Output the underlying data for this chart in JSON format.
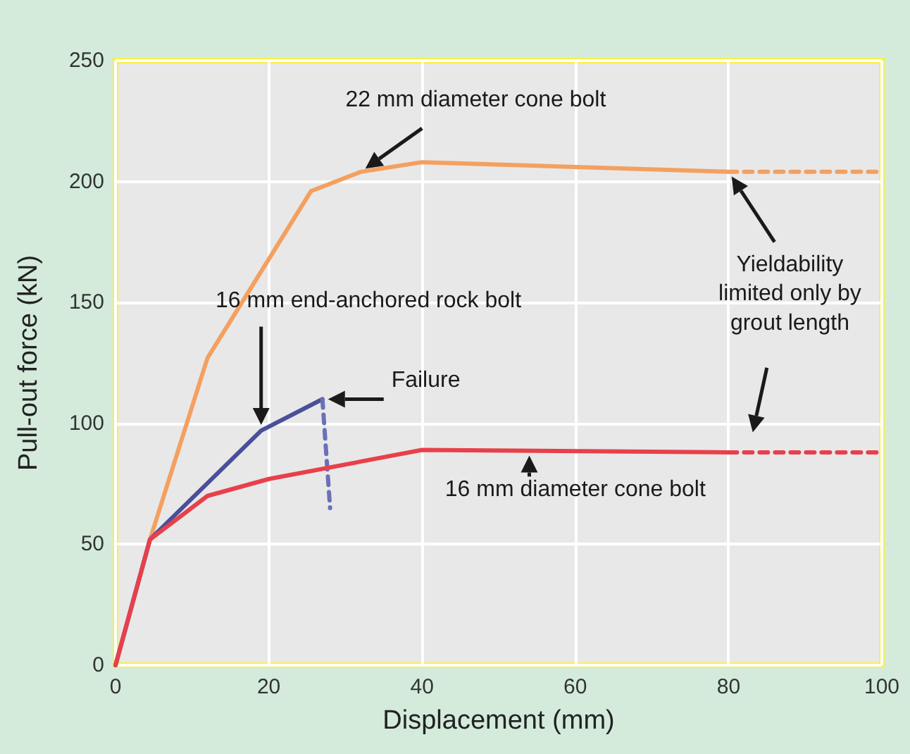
{
  "chart_data": {
    "type": "line",
    "xlabel": "Displacement (mm)",
    "ylabel": "Pull-out force (kN)",
    "xlim": [
      0,
      100
    ],
    "xticks": [
      0,
      20,
      40,
      60,
      80,
      100
    ],
    "ylim": [
      0,
      250
    ],
    "yticks": [
      0,
      50,
      100,
      150,
      200,
      250
    ],
    "grid": true,
    "marker": "none",
    "series": [
      {
        "color": "#f4a060",
        "x": [
          0,
          4.5,
          12,
          25.5,
          32,
          40,
          80
        ],
        "values": [
          0,
          52,
          127,
          196,
          204,
          208,
          204
        ],
        "line_style": "solid"
      },
      {
        "color": "#f4a060",
        "x": [
          80,
          100
        ],
        "values": [
          204,
          204
        ],
        "line_style": "dashed"
      },
      {
        "color": "#4a4f9a",
        "x": [
          0,
          4.5,
          19,
          27
        ],
        "values": [
          0,
          52,
          97,
          110
        ],
        "line_style": "solid"
      },
      {
        "color": "#6a70b8",
        "x": [
          27,
          28
        ],
        "values": [
          110,
          65
        ],
        "line_style": "dashed"
      },
      {
        "color": "#e8404a",
        "x": [
          0,
          4.5,
          12,
          20,
          40,
          80
        ],
        "values": [
          0,
          52,
          70,
          77,
          89,
          88
        ],
        "line_style": "solid"
      },
      {
        "color": "#e8404a",
        "x": [
          80,
          100
        ],
        "values": [
          88,
          88
        ],
        "line_style": "dashed"
      }
    ],
    "annotations": [
      "22 mm diameter cone bolt",
      "Yieldability\nlimited only by\ngrout length",
      "16 mm end-anchored rock bolt",
      "Failure",
      "16 mm diameter cone bolt"
    ]
  }
}
